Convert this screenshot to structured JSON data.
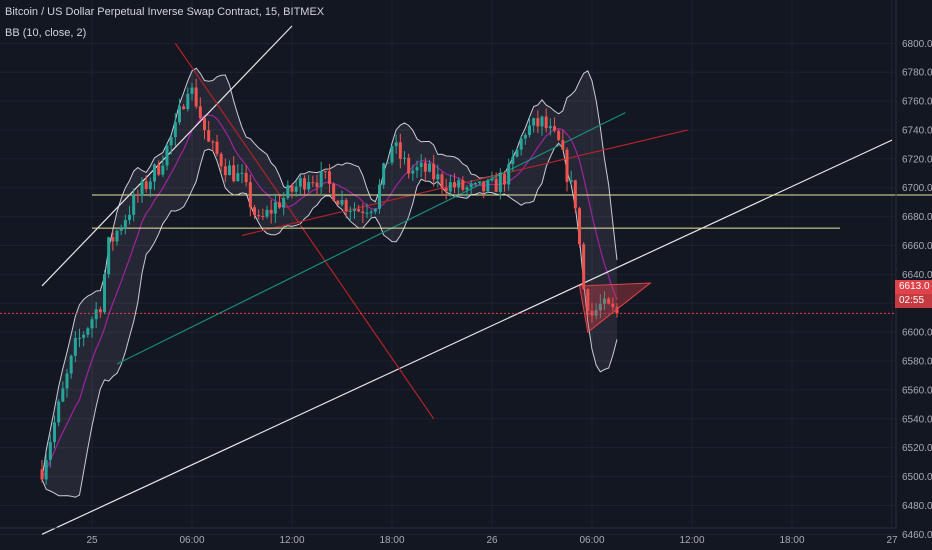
{
  "header": {
    "title": "Bitcoin / US Dollar Perpetual Inverse Swap Contract, 15, BITMEX",
    "indicator": "BB (10, close, 2)"
  },
  "price_tag": {
    "value": "6613.0",
    "countdown": "02:55"
  },
  "colors": {
    "background": "#131722",
    "grid": "#1e2230",
    "up_candle": "#26a69a",
    "down_candle": "#ef5350",
    "bollinger_band": "#c9ccd6",
    "bollinger_basis": "#a0229f",
    "price_line": "#e0424a",
    "trendline_white": "#e6e6e6",
    "trendline_red": "#b2222a",
    "trendline_green": "#198b79",
    "support_yellow": "#e8e6a0",
    "axis_text": "#a9acb6"
  },
  "chart_data": {
    "type": "candlestick",
    "y_axis": {
      "range": [
        6454,
        6812
      ],
      "ticks": [
        "6460.0",
        "6480.0",
        "6500.0",
        "6520.0",
        "6540.0",
        "6560.0",
        "6580.0",
        "6600.0",
        "6620.0",
        "6640.0",
        "6660.0",
        "6680.0",
        "6700.0",
        "6720.0",
        "6740.0",
        "6760.0",
        "6780.0",
        "6800.0"
      ]
    },
    "x_axis": {
      "ticks": [
        "25",
        "06:00",
        "12:00",
        "18:00",
        "26",
        "06:00",
        "12:00",
        "18:00",
        "27"
      ]
    },
    "last_price": 6613.0,
    "price_keypoints": [
      [
        "24 21:00",
        6505
      ],
      [
        "24 23:00",
        6590
      ],
      [
        "25 00:30",
        6620
      ],
      [
        "25 01:00",
        6660
      ],
      [
        "25 02:30",
        6690
      ],
      [
        "25 04:00",
        6715
      ],
      [
        "25 05:00",
        6740
      ],
      [
        "25 05:45",
        6772
      ],
      [
        "25 06:15",
        6760
      ],
      [
        "25 07:00",
        6730
      ],
      [
        "25 08:00",
        6715
      ],
      [
        "25 09:00",
        6705
      ],
      [
        "25 10:00",
        6675
      ],
      [
        "25 11:00",
        6688
      ],
      [
        "25 12:00",
        6698
      ],
      [
        "25 13:00",
        6708
      ],
      [
        "25 14:00",
        6705
      ],
      [
        "25 15:00",
        6690
      ],
      [
        "25 16:00",
        6685
      ],
      [
        "25 17:00",
        6690
      ],
      [
        "25 18:00",
        6730
      ],
      [
        "25 19:00",
        6712
      ],
      [
        "25 20:00",
        6712
      ],
      [
        "25 21:00",
        6704
      ],
      [
        "25 22:00",
        6700
      ],
      [
        "25 23:00",
        6698
      ],
      [
        "26 00:00",
        6700
      ],
      [
        "26 01:00",
        6710
      ],
      [
        "26 02:00",
        6740
      ],
      [
        "26 03:00",
        6745
      ],
      [
        "26 04:00",
        6730
      ],
      [
        "26 05:00",
        6690
      ],
      [
        "26 05:30",
        6630
      ],
      [
        "26 06:00",
        6612
      ],
      [
        "26 06:30",
        6618
      ],
      [
        "26 07:30",
        6613
      ]
    ],
    "bollinger_bands": {
      "length": 10,
      "source": "close",
      "mult": 2
    },
    "horizontal_levels": [
      6695,
      6672
    ],
    "trendlines": [
      {
        "color": "white",
        "from": [
          "24 21:00",
          6632
        ],
        "to": [
          "25 12:00",
          6812
        ]
      },
      {
        "color": "white",
        "from": [
          "24 21:00",
          6460
        ],
        "to": [
          "27 00:00",
          6733
        ]
      },
      {
        "color": "red",
        "from": [
          "25 05:00",
          6800
        ],
        "to": [
          "25 20:30",
          6540
        ]
      },
      {
        "color": "red",
        "from": [
          "25 09:00",
          6667
        ],
        "to": [
          "26 11:45",
          6740
        ]
      },
      {
        "color": "green",
        "from": [
          "25 01:30",
          6578
        ],
        "to": [
          "26 08:00",
          6752
        ]
      }
    ]
  }
}
